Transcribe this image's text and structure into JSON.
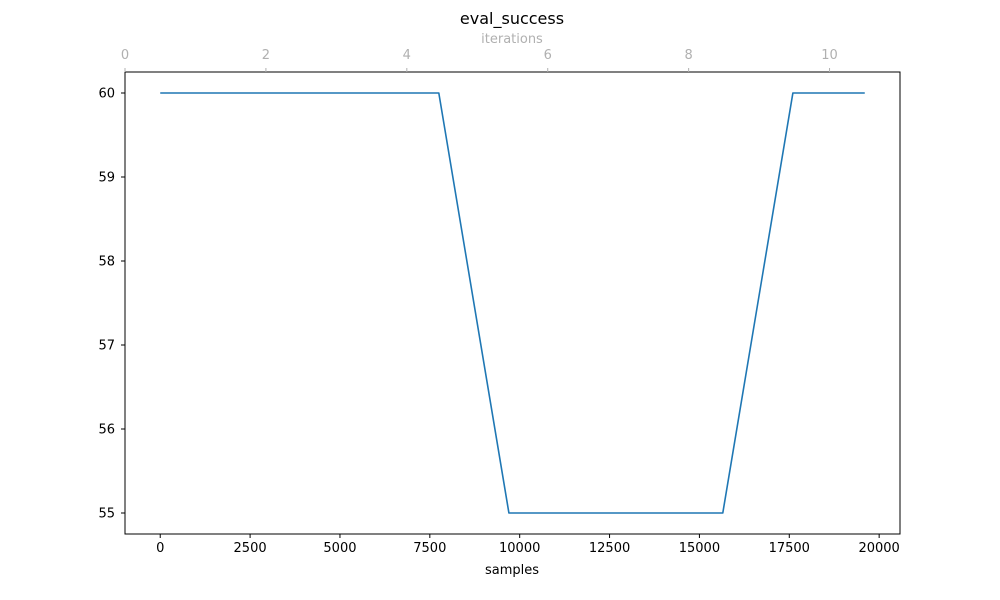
{
  "chart_data": {
    "type": "line",
    "title": "eval_success",
    "xlabel": "samples",
    "ylabel": "",
    "top_xlabel": "iterations",
    "xlim": [
      -980,
      20580
    ],
    "ylim": [
      54.75,
      60.25
    ],
    "xticks": [
      0,
      2500,
      5000,
      7500,
      10000,
      12500,
      15000,
      17500,
      20000
    ],
    "yticks": [
      55,
      56,
      57,
      58,
      59,
      60
    ],
    "top_xlim": [
      0,
      11
    ],
    "top_xticks": [
      0,
      2,
      4,
      6,
      8,
      10
    ],
    "grid": false,
    "series": [
      {
        "x": [
          0,
          7750,
          9700,
          15650,
          17600,
          19600
        ],
        "y": [
          60,
          60,
          55,
          55,
          60,
          60
        ]
      }
    ]
  },
  "colors": {
    "line": "#1f77b4",
    "axis": "#000000",
    "top_axis": "#b0b0b0"
  }
}
